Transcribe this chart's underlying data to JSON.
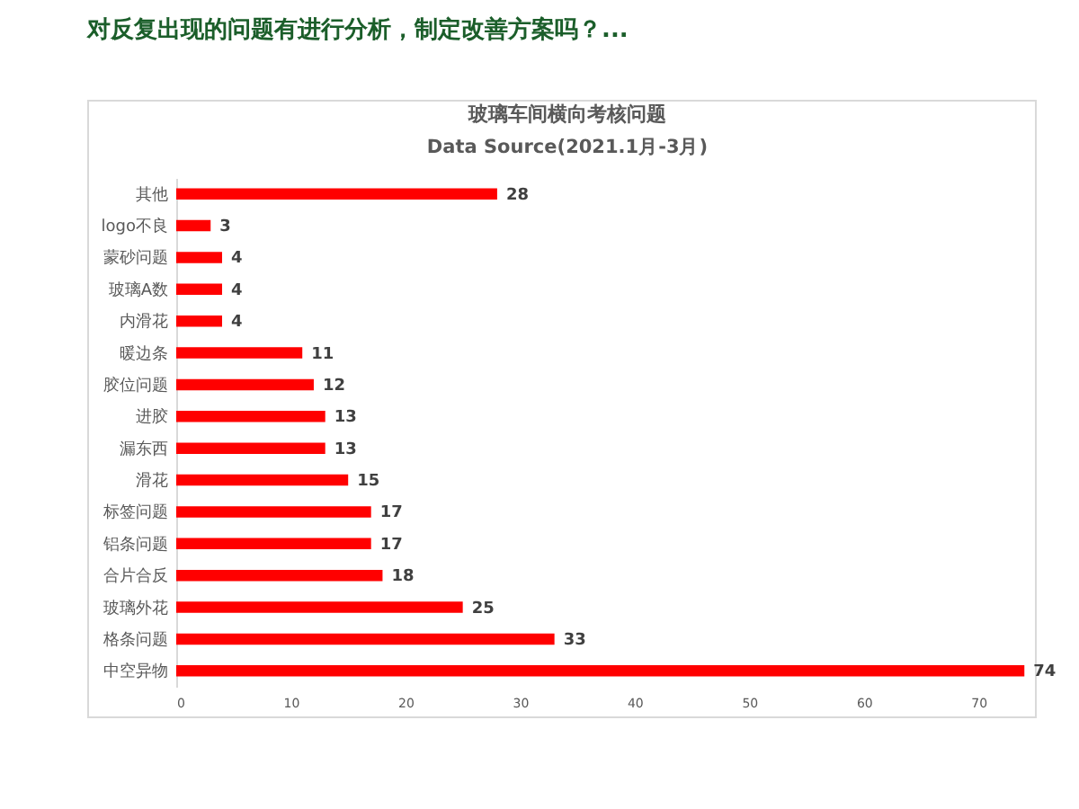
{
  "chart_data": {
    "type": "bar",
    "orientation": "horizontal",
    "title": "对反复出现的问题有进行分析，制定改善方案吗？...",
    "subtitle": "玻璃车间横向考核问题",
    "annotations": [
      "Data Source(2021.1月-3月)"
    ],
    "categories": [
      "其他",
      "logo不良",
      "蒙砂问题",
      "玻璃A数",
      "内滑花",
      "暖边条",
      "胶位问题",
      "进胶",
      "漏东西",
      "滑花",
      "标签问题",
      "铝条问题",
      "合片合反",
      "玻璃外花",
      "格条问题",
      "中空异物"
    ],
    "values": [
      28,
      3,
      4,
      4,
      4,
      11,
      12,
      13,
      13,
      15,
      17,
      17,
      18,
      25,
      33,
      74
    ],
    "color": "#ff0000",
    "data_labels": true,
    "xlim": [
      0,
      75
    ],
    "xticks": [
      0,
      10,
      20,
      30,
      40,
      50,
      60,
      70
    ]
  }
}
